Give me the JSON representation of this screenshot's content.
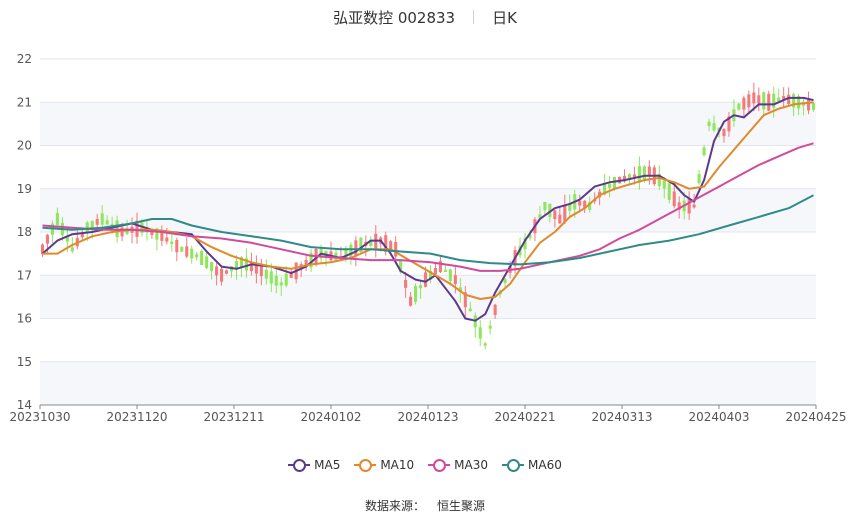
{
  "header": {
    "stock": "弘亚数控 002833",
    "period": "日K"
  },
  "legend": [
    {
      "key": "ma5",
      "label": "MA5",
      "color": "#5b3a8e"
    },
    {
      "key": "ma10",
      "label": "MA10",
      "color": "#e08a2c"
    },
    {
      "key": "ma30",
      "label": "MA30",
      "color": "#d14b9b"
    },
    {
      "key": "ma60",
      "label": "MA60",
      "color": "#2f8a8a"
    }
  ],
  "source": {
    "label": "数据来源：",
    "name": "恒生聚源"
  },
  "chart_data": {
    "type": "candlestick",
    "ylim": [
      14,
      22
    ],
    "yticks": [
      14,
      15,
      16,
      17,
      18,
      19,
      20,
      21,
      22
    ],
    "x_tick_labels": [
      "20231030",
      "20231120",
      "20231211",
      "20240102",
      "20240123",
      "20240221",
      "20240313",
      "20240403",
      "20240425"
    ],
    "up_color": "#f47a7a",
    "down_color": "#8fe65c",
    "grid": true,
    "legend_position": "bottom",
    "ohlc_anchor_path": [
      [
        0,
        17.6
      ],
      [
        3,
        18.3
      ],
      [
        6,
        17.6
      ],
      [
        9,
        18.1
      ],
      [
        12,
        18.3
      ],
      [
        16,
        18.0
      ],
      [
        20,
        18.1
      ],
      [
        24,
        17.9
      ],
      [
        28,
        17.6
      ],
      [
        32,
        17.4
      ],
      [
        36,
        17.0
      ],
      [
        40,
        17.3
      ],
      [
        44,
        17.1
      ],
      [
        48,
        16.8
      ],
      [
        52,
        17.2
      ],
      [
        56,
        17.5
      ],
      [
        60,
        17.4
      ],
      [
        64,
        17.7
      ],
      [
        68,
        17.8
      ],
      [
        71,
        17.6
      ],
      [
        74,
        16.4
      ],
      [
        77,
        16.9
      ],
      [
        80,
        17.2
      ],
      [
        83,
        16.9
      ],
      [
        86,
        16.2
      ],
      [
        89,
        15.4
      ],
      [
        92,
        16.6
      ],
      [
        95,
        17.4
      ],
      [
        98,
        17.9
      ],
      [
        101,
        18.6
      ],
      [
        104,
        18.3
      ],
      [
        107,
        18.7
      ],
      [
        110,
        18.6
      ],
      [
        113,
        19.0
      ],
      [
        116,
        19.2
      ],
      [
        119,
        19.3
      ],
      [
        122,
        19.4
      ],
      [
        125,
        19.1
      ],
      [
        128,
        18.6
      ],
      [
        131,
        18.6
      ],
      [
        134,
        20.5
      ],
      [
        137,
        20.3
      ],
      [
        140,
        20.9
      ],
      [
        143,
        21.1
      ],
      [
        146,
        21.0
      ],
      [
        149,
        21.1
      ],
      [
        152,
        21.0
      ],
      [
        155,
        20.9
      ]
    ],
    "series": [
      {
        "name": "MA5",
        "key": "ma5",
        "points": [
          [
            0,
            17.5
          ],
          [
            3,
            17.8
          ],
          [
            6,
            17.95
          ],
          [
            10,
            18.0
          ],
          [
            14,
            18.1
          ],
          [
            18,
            18.2
          ],
          [
            22,
            18.05
          ],
          [
            26,
            18.0
          ],
          [
            30,
            17.95
          ],
          [
            33,
            17.55
          ],
          [
            36,
            17.2
          ],
          [
            39,
            17.15
          ],
          [
            42,
            17.25
          ],
          [
            46,
            17.2
          ],
          [
            50,
            17.05
          ],
          [
            53,
            17.2
          ],
          [
            56,
            17.5
          ],
          [
            60,
            17.4
          ],
          [
            63,
            17.55
          ],
          [
            66,
            17.8
          ],
          [
            68,
            17.8
          ],
          [
            70,
            17.5
          ],
          [
            72,
            17.1
          ],
          [
            75,
            16.9
          ],
          [
            77,
            16.85
          ],
          [
            79,
            17.0
          ],
          [
            81,
            16.7
          ],
          [
            83,
            16.4
          ],
          [
            85,
            16.0
          ],
          [
            87,
            15.95
          ],
          [
            89,
            16.1
          ],
          [
            91,
            16.6
          ],
          [
            93,
            17.0
          ],
          [
            95,
            17.4
          ],
          [
            97,
            17.8
          ],
          [
            100,
            18.3
          ],
          [
            103,
            18.55
          ],
          [
            106,
            18.65
          ],
          [
            108,
            18.75
          ],
          [
            111,
            19.05
          ],
          [
            114,
            19.15
          ],
          [
            117,
            19.2
          ],
          [
            121,
            19.3
          ],
          [
            124,
            19.3
          ],
          [
            127,
            19.1
          ],
          [
            129,
            18.85
          ],
          [
            131,
            18.7
          ],
          [
            133,
            19.2
          ],
          [
            135,
            20.1
          ],
          [
            137,
            20.55
          ],
          [
            139,
            20.7
          ],
          [
            141,
            20.65
          ],
          [
            144,
            20.95
          ],
          [
            147,
            20.95
          ],
          [
            150,
            21.1
          ],
          [
            153,
            21.1
          ],
          [
            155,
            21.05
          ]
        ]
      },
      {
        "name": "MA10",
        "key": "ma10",
        "points": [
          [
            0,
            17.5
          ],
          [
            3,
            17.5
          ],
          [
            6,
            17.7
          ],
          [
            10,
            17.9
          ],
          [
            14,
            18.0
          ],
          [
            18,
            18.05
          ],
          [
            22,
            18.05
          ],
          [
            26,
            18.0
          ],
          [
            30,
            17.9
          ],
          [
            34,
            17.65
          ],
          [
            38,
            17.45
          ],
          [
            42,
            17.3
          ],
          [
            46,
            17.2
          ],
          [
            50,
            17.15
          ],
          [
            54,
            17.25
          ],
          [
            58,
            17.3
          ],
          [
            62,
            17.4
          ],
          [
            66,
            17.6
          ],
          [
            70,
            17.6
          ],
          [
            73,
            17.4
          ],
          [
            76,
            17.2
          ],
          [
            79,
            17.0
          ],
          [
            82,
            16.8
          ],
          [
            85,
            16.55
          ],
          [
            88,
            16.45
          ],
          [
            91,
            16.5
          ],
          [
            94,
            16.8
          ],
          [
            97,
            17.3
          ],
          [
            100,
            17.75
          ],
          [
            103,
            18.0
          ],
          [
            106,
            18.35
          ],
          [
            109,
            18.55
          ],
          [
            112,
            18.85
          ],
          [
            115,
            19.0
          ],
          [
            118,
            19.1
          ],
          [
            121,
            19.2
          ],
          [
            124,
            19.25
          ],
          [
            127,
            19.15
          ],
          [
            130,
            19.0
          ],
          [
            133,
            19.05
          ],
          [
            136,
            19.5
          ],
          [
            139,
            19.9
          ],
          [
            142,
            20.3
          ],
          [
            145,
            20.7
          ],
          [
            148,
            20.85
          ],
          [
            151,
            20.95
          ],
          [
            155,
            21.0
          ]
        ]
      },
      {
        "name": "MA30",
        "key": "ma30",
        "points": [
          [
            0,
            18.15
          ],
          [
            6,
            18.1
          ],
          [
            12,
            18.05
          ],
          [
            18,
            18.05
          ],
          [
            24,
            18.0
          ],
          [
            30,
            17.9
          ],
          [
            36,
            17.85
          ],
          [
            42,
            17.75
          ],
          [
            48,
            17.6
          ],
          [
            54,
            17.45
          ],
          [
            60,
            17.4
          ],
          [
            66,
            17.35
          ],
          [
            72,
            17.35
          ],
          [
            78,
            17.3
          ],
          [
            84,
            17.2
          ],
          [
            88,
            17.1
          ],
          [
            92,
            17.1
          ],
          [
            96,
            17.15
          ],
          [
            100,
            17.25
          ],
          [
            104,
            17.35
          ],
          [
            108,
            17.45
          ],
          [
            112,
            17.6
          ],
          [
            116,
            17.85
          ],
          [
            120,
            18.05
          ],
          [
            124,
            18.3
          ],
          [
            128,
            18.55
          ],
          [
            132,
            18.8
          ],
          [
            136,
            19.05
          ],
          [
            140,
            19.3
          ],
          [
            144,
            19.55
          ],
          [
            148,
            19.75
          ],
          [
            152,
            19.95
          ],
          [
            155,
            20.05
          ]
        ]
      },
      {
        "name": "MA60",
        "key": "ma60",
        "points": [
          [
            0,
            18.1
          ],
          [
            6,
            18.05
          ],
          [
            12,
            18.1
          ],
          [
            18,
            18.2
          ],
          [
            22,
            18.3
          ],
          [
            26,
            18.3
          ],
          [
            30,
            18.15
          ],
          [
            36,
            18.0
          ],
          [
            42,
            17.9
          ],
          [
            48,
            17.8
          ],
          [
            54,
            17.65
          ],
          [
            60,
            17.6
          ],
          [
            66,
            17.6
          ],
          [
            72,
            17.55
          ],
          [
            78,
            17.5
          ],
          [
            84,
            17.35
          ],
          [
            90,
            17.28
          ],
          [
            96,
            17.25
          ],
          [
            102,
            17.3
          ],
          [
            108,
            17.4
          ],
          [
            114,
            17.55
          ],
          [
            120,
            17.7
          ],
          [
            126,
            17.8
          ],
          [
            132,
            17.95
          ],
          [
            138,
            18.15
          ],
          [
            144,
            18.35
          ],
          [
            150,
            18.55
          ],
          [
            155,
            18.85
          ]
        ]
      }
    ]
  }
}
